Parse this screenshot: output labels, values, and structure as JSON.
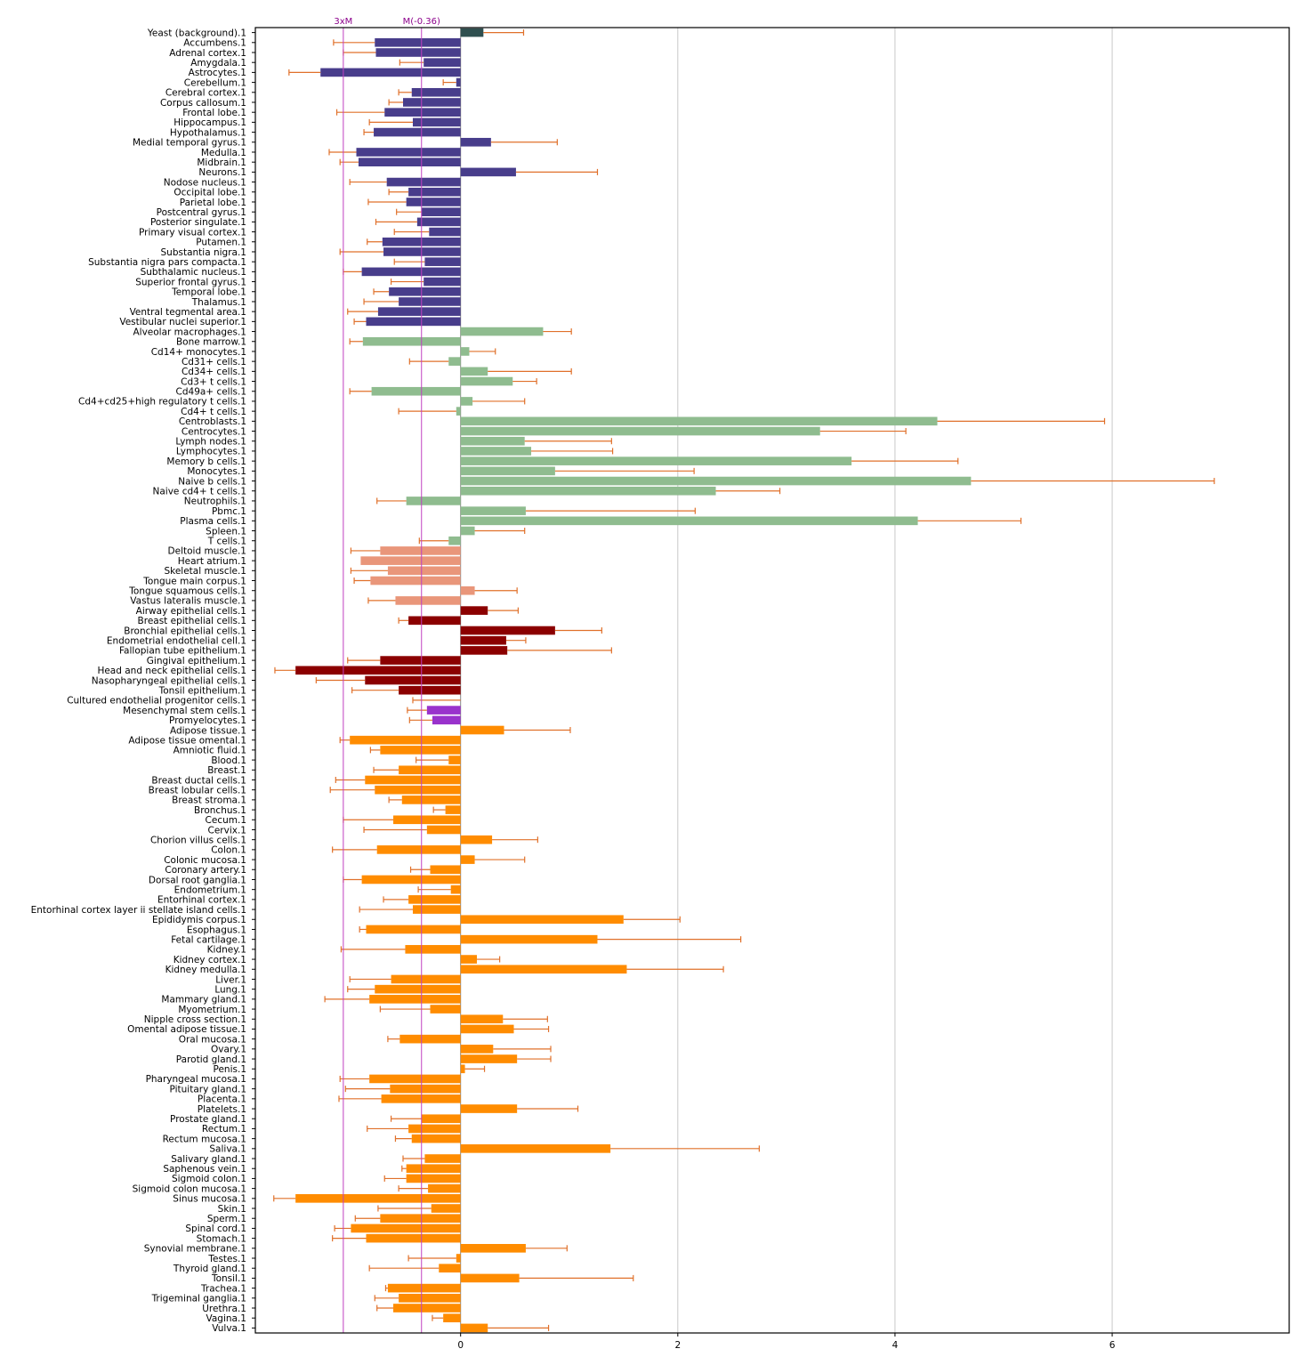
{
  "chart_data": {
    "type": "bar",
    "orientation": "horizontal",
    "title": "",
    "xlabel": "",
    "ylabel": "",
    "xlim": [
      -1.89,
      7.63
    ],
    "xticks": [
      0,
      2,
      4,
      6
    ],
    "grid": "vertical at x ticks",
    "group_colors": [
      "#2f4f4f",
      "#483d8b",
      "#8fbc8f",
      "#e9967a",
      "#8b0000",
      "#9932cc",
      "#ff8c00"
    ],
    "error_color": "#e0702a",
    "reference_lines": [
      {
        "label": "3xM",
        "x": -1.08,
        "color": "#c040c0"
      },
      {
        "label": "M(-0.36)",
        "x": -0.36,
        "color": "#c040c0"
      }
    ],
    "categories": [
      "Yeast (background).1",
      "Accumbens.1",
      "Adrenal cortex.1",
      "Amygdala.1",
      "Astrocytes.1",
      "Cerebellum.1",
      "Cerebral cortex.1",
      "Corpus callosum.1",
      "Frontal lobe.1",
      "Hippocampus.1",
      "Hypothalamus.1",
      "Medial temporal gyrus.1",
      "Medulla.1",
      "Midbrain.1",
      "Neurons.1",
      "Nodose nucleus.1",
      "Occipital lobe.1",
      "Parietal lobe.1",
      "Postcentral gyrus.1",
      "Posterior singulate.1",
      "Primary visual cortex.1",
      "Putamen.1",
      "Substantia nigra.1",
      "Substantia nigra pars compacta.1",
      "Subthalamic nucleus.1",
      "Superior frontal gyrus.1",
      "Temporal lobe.1",
      "Thalamus.1",
      "Ventral tegmental area.1",
      "Vestibular nuclei superior.1",
      "Alveolar macrophages.1",
      "Bone marrow.1",
      "Cd14+ monocytes.1",
      "Cd31+ cells.1",
      "Cd34+ cells.1",
      "Cd3+ t cells.1",
      "Cd49a+ cells.1",
      "Cd4+cd25+high regulatory t cells.1",
      "Cd4+ t cells.1",
      "Centroblasts.1",
      "Centrocytes.1",
      "Lymph nodes.1",
      "Lymphocytes.1",
      "Memory b cells.1",
      "Monocytes.1",
      "Naive b cells.1",
      "Naive cd4+ t cells.1",
      "Neutrophils.1",
      "Pbmc.1",
      "Plasma cells.1",
      "Spleen.1",
      "T cells.1",
      "Deltoid muscle.1",
      "Heart atrium.1",
      "Skeletal muscle.1",
      "Tongue main corpus.1",
      "Tongue squamous cells.1",
      "Vastus lateralis muscle.1",
      "Airway epithelial cells.1",
      "Breast epithelial cells.1",
      "Bronchial epithelial cells.1",
      "Endometrial endothelial cell.1",
      "Fallopian tube epithelium.1",
      "Gingival epithelium.1",
      "Head and neck epithelial cells.1",
      "Nasopharyngeal epithelial cells.1",
      "Tonsil epithelium.1",
      "Cultured endothelial progenitor cells.1",
      "Mesenchymal stem cells.1",
      "Promyelocytes.1",
      "Adipose tissue.1",
      "Adipose tissue omental.1",
      "Amniotic fluid.1",
      "Blood.1",
      "Breast.1",
      "Breast ductal cells.1",
      "Breast lobular cells.1",
      "Breast stroma.1",
      "Bronchus.1",
      "Cecum.1",
      "Cervix.1",
      "Chorion villus cells.1",
      "Colon.1",
      "Colonic mucosa.1",
      "Coronary artery.1",
      "Dorsal root ganglia.1",
      "Endometrium.1",
      "Entorhinal cortex.1",
      "Entorhinal cortex layer ii stellate island cells.1",
      "Epididymis corpus.1",
      "Esophagus.1",
      "Fetal cartilage.1",
      "Kidney.1",
      "Kidney cortex.1",
      "Kidney medulla.1",
      "Liver.1",
      "Lung.1",
      "Mammary gland.1",
      "Myometrium.1",
      "Nipple cross section.1",
      "Omental adipose tissue.1",
      "Oral mucosa.1",
      "Ovary.1",
      "Parotid gland.1",
      "Penis.1",
      "Pharyngeal mucosa.1",
      "Pituitary gland.1",
      "Placenta.1",
      "Platelets.1",
      "Prostate gland.1",
      "Rectum.1",
      "Rectum mucosa.1",
      "Saliva.1",
      "Salivary gland.1",
      "Saphenous vein.1",
      "Sigmoid colon.1",
      "Sigmoid colon mucosa.1",
      "Sinus mucosa.1",
      "Skin.1",
      "Sperm.1",
      "Spinal cord.1",
      "Stomach.1",
      "Synovial membrane.1",
      "Testes.1",
      "Thyroid gland.1",
      "Tonsil.1",
      "Trachea.1",
      "Trigeminal ganglia.1",
      "Urethra.1",
      "Vagina.1",
      "Vulva.1"
    ],
    "values": [
      0.21,
      -0.79,
      -0.78,
      -0.34,
      -1.29,
      -0.04,
      -0.45,
      -0.53,
      -0.7,
      -0.44,
      -0.8,
      0.28,
      -0.96,
      -0.94,
      0.51,
      -0.68,
      -0.48,
      -0.5,
      -0.36,
      -0.4,
      -0.29,
      -0.72,
      -0.71,
      -0.33,
      -0.91,
      -0.34,
      -0.66,
      -0.57,
      -0.76,
      -0.87,
      0.76,
      -0.9,
      0.08,
      -0.11,
      0.25,
      0.48,
      -0.82,
      0.11,
      -0.04,
      4.39,
      3.31,
      0.59,
      0.65,
      3.6,
      0.87,
      4.7,
      2.35,
      -0.5,
      0.6,
      4.21,
      0.13,
      -0.11,
      -0.74,
      -0.92,
      -0.67,
      -0.83,
      0.13,
      -0.6,
      0.25,
      -0.48,
      0.87,
      0.42,
      0.43,
      -0.74,
      -1.52,
      -0.88,
      -0.57,
      0.0,
      -0.31,
      -0.26,
      0.4,
      -1.02,
      -0.74,
      -0.11,
      -0.57,
      -0.88,
      -0.79,
      -0.54,
      -0.14,
      -0.62,
      -0.31,
      0.29,
      -0.77,
      0.13,
      -0.28,
      -0.91,
      -0.09,
      -0.48,
      -0.44,
      1.5,
      -0.87,
      1.26,
      -0.51,
      0.15,
      1.53,
      -0.64,
      -0.79,
      -0.84,
      -0.28,
      0.39,
      0.49,
      -0.56,
      0.3,
      0.52,
      0.04,
      -0.84,
      -0.65,
      -0.73,
      0.52,
      -0.36,
      -0.48,
      -0.45,
      1.38,
      -0.33,
      -0.5,
      -0.5,
      -0.3,
      -1.52,
      -0.27,
      -0.74,
      -1.01,
      -0.87,
      0.6,
      -0.04,
      -0.2,
      0.54,
      -0.67,
      -0.57,
      -0.62,
      -0.16,
      0.25
    ],
    "error_ends": [
      0.58,
      -1.17,
      -1.08,
      -0.56,
      -1.58,
      -0.16,
      -0.57,
      -0.66,
      -1.14,
      -0.84,
      -0.89,
      0.89,
      -1.21,
      -1.11,
      1.26,
      -1.02,
      -0.66,
      -0.85,
      -0.59,
      -0.78,
      -0.61,
      -0.86,
      -1.11,
      -0.61,
      -1.08,
      -0.64,
      -0.8,
      -0.89,
      -1.04,
      -0.98,
      1.02,
      -1.02,
      0.32,
      -0.47,
      1.02,
      0.7,
      -1.02,
      0.59,
      -0.57,
      5.93,
      4.1,
      1.39,
      1.4,
      4.58,
      2.15,
      6.94,
      2.94,
      -0.77,
      2.16,
      5.16,
      0.59,
      -0.38,
      -1.01,
      -0.92,
      -1.01,
      -0.98,
      0.52,
      -0.85,
      0.53,
      -0.57,
      1.3,
      0.6,
      1.39,
      -1.04,
      -1.71,
      -1.33,
      -1.0,
      -0.44,
      -0.49,
      -0.47,
      1.01,
      -1.11,
      -0.83,
      -0.41,
      -0.8,
      -1.15,
      -1.2,
      -0.66,
      -0.25,
      -1.08,
      -0.89,
      0.71,
      -1.18,
      0.59,
      -0.46,
      -1.08,
      -0.39,
      -0.71,
      -0.93,
      2.02,
      -0.93,
      2.58,
      -1.1,
      0.36,
      2.42,
      -1.02,
      -1.04,
      -1.25,
      -0.74,
      0.8,
      0.81,
      -0.67,
      0.83,
      0.83,
      0.22,
      -1.11,
      -1.06,
      -1.12,
      1.08,
      -0.64,
      -0.86,
      -0.6,
      2.75,
      -0.53,
      -0.54,
      -0.7,
      -0.57,
      -1.72,
      -0.76,
      -0.97,
      -1.16,
      -1.18,
      0.98,
      -0.48,
      -0.84,
      1.59,
      -0.69,
      -0.79,
      -0.77,
      -0.26,
      0.81
    ],
    "groups": [
      0,
      1,
      1,
      1,
      1,
      1,
      1,
      1,
      1,
      1,
      1,
      1,
      1,
      1,
      1,
      1,
      1,
      1,
      1,
      1,
      1,
      1,
      1,
      1,
      1,
      1,
      1,
      1,
      1,
      1,
      2,
      2,
      2,
      2,
      2,
      2,
      2,
      2,
      2,
      2,
      2,
      2,
      2,
      2,
      2,
      2,
      2,
      2,
      2,
      2,
      2,
      2,
      3,
      3,
      3,
      3,
      3,
      3,
      4,
      4,
      4,
      4,
      4,
      4,
      4,
      4,
      4,
      4,
      5,
      5,
      6,
      6,
      6,
      6,
      6,
      6,
      6,
      6,
      6,
      6,
      6,
      6,
      6,
      6,
      6,
      6,
      6,
      6,
      6,
      6,
      6,
      6,
      6,
      6,
      6,
      6,
      6,
      6,
      6,
      6,
      6,
      6,
      6,
      6,
      6,
      6,
      6,
      6,
      6,
      6,
      6,
      6,
      6,
      6,
      6,
      6,
      6,
      6,
      6,
      6,
      6,
      6,
      6,
      6,
      6,
      6,
      6,
      6,
      6,
      6,
      6
    ]
  }
}
